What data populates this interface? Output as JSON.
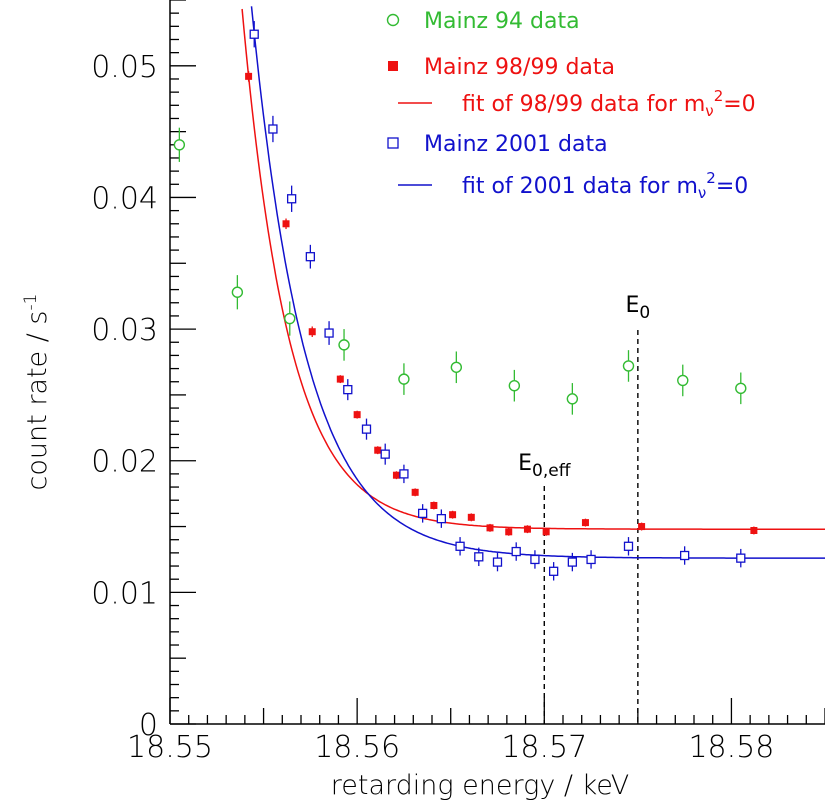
{
  "chart_data": {
    "type": "scatter",
    "title": "",
    "xlabel": "retarding energy  / keV",
    "ylabel": "count rate  / s",
    "ylabel_superscript": "-1",
    "xlim": [
      18.55,
      18.585
    ],
    "ylim": [
      0,
      0.055
    ],
    "x_ticks": [
      18.55,
      18.56,
      18.57,
      18.58
    ],
    "x_tick_labels": [
      "18.55",
      "18.56",
      "18.57",
      "18.58"
    ],
    "y_ticks": [
      0,
      0.01,
      0.02,
      0.03,
      0.04,
      0.05
    ],
    "y_tick_labels": [
      "0",
      "0.01",
      "0.02",
      "0.03",
      "0.04",
      "0.05"
    ],
    "grid": false,
    "legend_position": "top-right",
    "colors": {
      "green": "#33bb33",
      "red": "#ee1111",
      "blue": "#1111cc"
    },
    "series": [
      {
        "name": "Mainz 94 data",
        "marker": "open-circle",
        "color": "#33bb33",
        "x": [
          18.5505,
          18.5536,
          18.5564,
          18.5593,
          18.5625,
          18.5653,
          18.5684,
          18.5715,
          18.5745,
          18.5774,
          18.5805
        ],
        "y": [
          0.044,
          0.0328,
          0.0308,
          0.0288,
          0.0262,
          0.0271,
          0.0257,
          0.0247,
          0.0272,
          0.0261,
          0.0255
        ],
        "err": [
          0.0013,
          0.0013,
          0.0013,
          0.0012,
          0.0012,
          0.0012,
          0.0012,
          0.0012,
          0.0012,
          0.0012,
          0.0012
        ]
      },
      {
        "name": "Mainz 98/99 data",
        "marker": "filled-square",
        "color": "#ee1111",
        "x": [
          18.5542,
          18.5562,
          18.5576,
          18.5591,
          18.56,
          18.5611,
          18.5621,
          18.5631,
          18.5641,
          18.5651,
          18.5661,
          18.5671,
          18.5681,
          18.5691,
          18.5701,
          18.5722,
          18.5752,
          18.5812
        ],
        "y": [
          0.0492,
          0.038,
          0.0298,
          0.0262,
          0.0235,
          0.0208,
          0.0189,
          0.0176,
          0.0166,
          0.0159,
          0.0157,
          0.0149,
          0.0146,
          0.0148,
          0.0146,
          0.0153,
          0.015,
          0.0147
        ],
        "err": [
          0.0004,
          0.0004,
          0.0004,
          0.0003,
          0.0003,
          0.0003,
          0.0003,
          0.0003,
          0.0003,
          0.0003,
          0.0003,
          0.0003,
          0.0003,
          0.0003,
          0.0003,
          0.0003,
          0.0003,
          0.0003
        ]
      },
      {
        "name": "fit of 98/99 data for m_ν²=0",
        "marker": "line",
        "color": "#ee1111",
        "fit": {
          "model": "exponential-plus-background",
          "x0": 18.5542,
          "a": 0.0344,
          "tau": 0.0025,
          "background": 0.0148
        }
      },
      {
        "name": "Mainz 2001 data",
        "marker": "open-square",
        "color": "#1111cc",
        "x": [
          18.5545,
          18.5555,
          18.5565,
          18.5575,
          18.5585,
          18.5595,
          18.5605,
          18.5615,
          18.5625,
          18.5635,
          18.5645,
          18.5655,
          18.5665,
          18.5675,
          18.5685,
          18.5695,
          18.5705,
          18.5715,
          18.5725,
          18.5745,
          18.5775,
          18.5805
        ],
        "y": [
          0.0524,
          0.0452,
          0.0399,
          0.0355,
          0.0297,
          0.0254,
          0.0224,
          0.0205,
          0.019,
          0.016,
          0.0156,
          0.0135,
          0.0127,
          0.0123,
          0.0131,
          0.0125,
          0.0116,
          0.0123,
          0.0125,
          0.0135,
          0.0128,
          0.0126
        ],
        "err": [
          0.001,
          0.001,
          0.001,
          0.0009,
          0.0009,
          0.0008,
          0.0008,
          0.0008,
          0.0007,
          0.0007,
          0.0007,
          0.0007,
          0.0007,
          0.0007,
          0.0007,
          0.0007,
          0.0007,
          0.0007,
          0.0007,
          0.0007,
          0.0007,
          0.0007
        ]
      },
      {
        "name": "fit of 2001 data for m_ν²=0",
        "marker": "line",
        "color": "#1111cc",
        "fit": {
          "model": "exponential-plus-background",
          "x0": 18.5545,
          "a": 0.0399,
          "tau": 0.0029,
          "background": 0.0126
        }
      }
    ],
    "legend": [
      {
        "text": "Mainz 94 data",
        "sub": "",
        "sup": "",
        "tail": ""
      },
      {
        "text": "Mainz 98/99 data",
        "sub": "",
        "sup": "",
        "tail": ""
      },
      {
        "text": "fit of 98/99 data for m",
        "sub": "ν",
        "sup": "2",
        "tail": "=0"
      },
      {
        "text": "Mainz 2001 data",
        "sub": "",
        "sup": "",
        "tail": ""
      },
      {
        "text": "fit of 2001 data for m",
        "sub": "ν",
        "sup": "2",
        "tail": "=0"
      }
    ],
    "annotations": [
      {
        "text": "E",
        "sub": "0",
        "x": 18.575
      },
      {
        "text": "E",
        "sub": "0,eff",
        "x": 18.57
      }
    ]
  }
}
